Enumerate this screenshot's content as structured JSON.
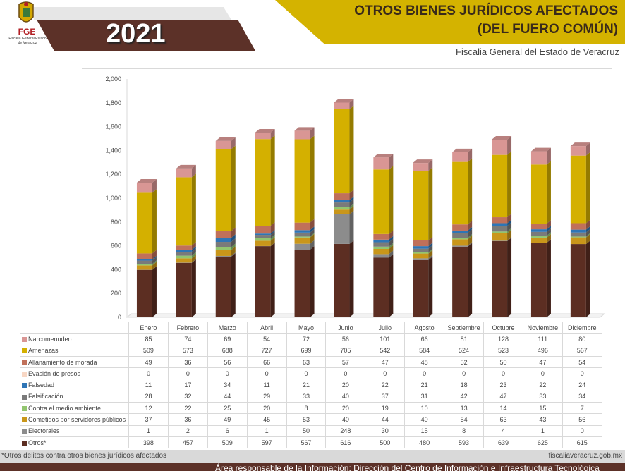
{
  "header": {
    "logo_text": "FGE",
    "logo_subtext": "Fiscalía General Estado de Veracruz",
    "year": "2021",
    "title_line1": "OTROS BIENES JURÍDICOS AFECTADOS",
    "title_line2": "(DEL FUERO COMÚN)",
    "subtitle": "Fiscalia General del Estado de Veracruz"
  },
  "footer": {
    "note": "*Otros delitos contra otros bienes jurídicos afectados",
    "url": "fiscaliaveracruz.gob.mx",
    "area": "Área responsable de la Información: Dirección del Centro de Información e Infraestructura Tecnológica"
  },
  "chart_data": {
    "type": "bar",
    "stacked": true,
    "style": "3d",
    "ylim": [
      0,
      2000
    ],
    "yticks": [
      "0",
      "200",
      "400",
      "600",
      "800",
      "1,000",
      "1,200",
      "1,400",
      "1,600",
      "1,800",
      "2,000"
    ],
    "grid": false,
    "legend": "table-below",
    "categories": [
      "Enero",
      "Febrero",
      "Marzo",
      "Abril",
      "Mayo",
      "Junio",
      "Julio",
      "Agosto",
      "Septiembre",
      "Octubre",
      "Noviembre",
      "Diciembre"
    ],
    "series": [
      {
        "name": "Narcomenudeo",
        "color": "#d99694",
        "values": [
          85,
          74,
          69,
          54,
          72,
          56,
          101,
          66,
          81,
          128,
          111,
          80
        ]
      },
      {
        "name": "Amenazas",
        "color": "#d4b000",
        "values": [
          509,
          573,
          688,
          727,
          699,
          705,
          542,
          584,
          524,
          523,
          496,
          567
        ]
      },
      {
        "name": "Allanamiento de morada",
        "color": "#c0705a",
        "values": [
          49,
          36,
          56,
          66,
          63,
          57,
          47,
          48,
          52,
          50,
          47,
          54
        ]
      },
      {
        "name": "Evasión de presos",
        "color": "#f8d7c4",
        "values": [
          0,
          0,
          0,
          0,
          0,
          0,
          0,
          0,
          0,
          0,
          0,
          0
        ]
      },
      {
        "name": "Falsedad",
        "color": "#2e75b6",
        "values": [
          11,
          17,
          34,
          11,
          21,
          20,
          22,
          21,
          18,
          23,
          22,
          24
        ]
      },
      {
        "name": "Falsificación",
        "color": "#7a7a7a",
        "values": [
          28,
          32,
          44,
          29,
          33,
          40,
          37,
          31,
          42,
          47,
          33,
          34
        ]
      },
      {
        "name": "Contra el medio ambiente",
        "color": "#92c56f",
        "values": [
          12,
          22,
          25,
          20,
          8,
          20,
          19,
          10,
          13,
          14,
          15,
          7
        ]
      },
      {
        "name": "Cometidos por servidores públicos",
        "color": "#c9961a",
        "values": [
          37,
          36,
          49,
          45,
          53,
          40,
          44,
          40,
          54,
          63,
          43,
          56
        ]
      },
      {
        "name": "Electorales",
        "color": "#8c8c8c",
        "values": [
          1,
          2,
          6,
          1,
          50,
          248,
          30,
          15,
          8,
          4,
          1,
          0
        ]
      },
      {
        "name": "Otros*",
        "color": "#5c2e22",
        "values": [
          398,
          457,
          509,
          597,
          567,
          616,
          500,
          480,
          593,
          639,
          625,
          615
        ]
      }
    ]
  }
}
